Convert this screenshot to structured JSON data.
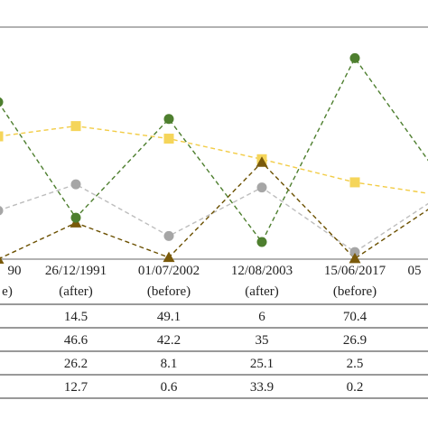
{
  "chart_data": {
    "type": "line",
    "title": "",
    "xlabel": "",
    "ylabel": "",
    "grid": false,
    "legend": "none",
    "categories": [
      {
        "date": "...90",
        "tag": "...e)"
      },
      {
        "date": "26/12/1991",
        "tag": "(after)"
      },
      {
        "date": "01/07/2002",
        "tag": "(before)"
      },
      {
        "date": "12/08/2003",
        "tag": "(after)"
      },
      {
        "date": "15/06/2017",
        "tag": "(before)"
      },
      {
        "date": "05...",
        "tag": ""
      }
    ],
    "ylim": [
      0,
      80
    ],
    "series": [
      {
        "marker": "circle",
        "color": "#4e7f2f",
        "line_color": "#4e7f2f",
        "values": [
          55,
          14.5,
          49.1,
          6,
          70.4,
          25
        ],
        "table": [
          "14.5",
          "49.1",
          "6",
          "70.4"
        ]
      },
      {
        "marker": "square",
        "color": "#f5d55a",
        "line_color": "#f2cc45",
        "values": [
          43,
          46.6,
          42.2,
          35,
          26.9,
          22
        ],
        "table": [
          "46.6",
          "42.2",
          "35",
          "26.9"
        ]
      },
      {
        "marker": "circle",
        "color": "#a6a6a6",
        "line_color": "#bdbdbd",
        "values": [
          17,
          26.2,
          8.1,
          25.1,
          2.5,
          24
        ],
        "table": [
          "26.2",
          "8.1",
          "25.1",
          "2.5"
        ]
      },
      {
        "marker": "triangle",
        "color": "#7a5a0a",
        "line_color": "#6b5000",
        "values": [
          0,
          12.7,
          0.6,
          33.9,
          0.2,
          22
        ],
        "table": [
          "12.7",
          "0.6",
          "33.9",
          "0.2"
        ]
      }
    ]
  }
}
